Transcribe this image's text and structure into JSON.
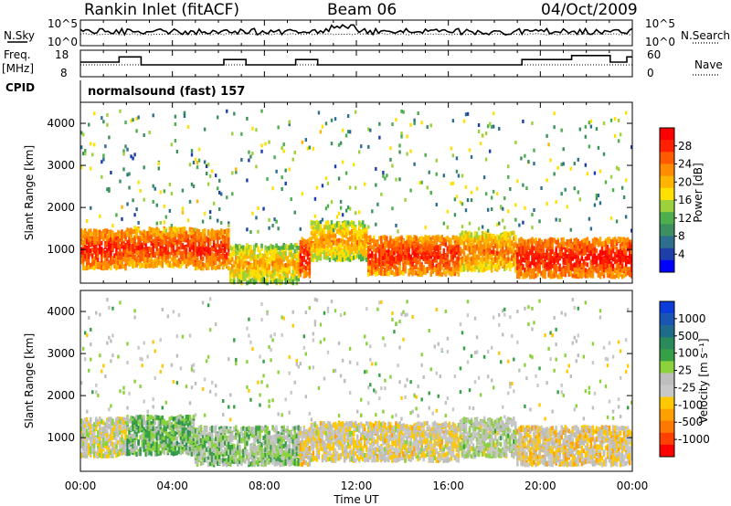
{
  "header": {
    "station": "Rankin Inlet (fitACF)",
    "beam": "Beam 06",
    "date": "04/Oct/2009"
  },
  "top_panels": {
    "nsky_label": "N.Sky",
    "nsky_ticks": [
      "10^5",
      "10^0"
    ],
    "nsearch_label": "N.Search",
    "nsearch_ticks": [
      "10^5",
      "10^0"
    ],
    "freq_label_line1": "Freq.",
    "freq_label_line2": "[MHz]",
    "freq_ticks": [
      "18",
      "8"
    ],
    "nave_label": "Nave",
    "nave_ticks": [
      "60",
      "0"
    ],
    "cpid_label": "CPID",
    "cpid_value": "normalsound (fast) 157"
  },
  "colors": {
    "power_scale": [
      "#0000ff",
      "#1c3faa",
      "#2e6e8e",
      "#3c8f5f",
      "#4cae4c",
      "#9dd13c",
      "#ffe000",
      "#ffb400",
      "#ff8c00",
      "#ff5a00",
      "#ff2000",
      "#ff0000"
    ],
    "velocity_scale": [
      "#0c3cdc",
      "#1a55b4",
      "#1f6b8c",
      "#2a8a5a",
      "#36a046",
      "#8cd23c",
      "#bebebe",
      "#c8c8c8",
      "#ffc800",
      "#ffa000",
      "#ff7800",
      "#ff4000",
      "#ff0000"
    ],
    "ground_scatter": "#bebebe"
  },
  "chart_data": [
    {
      "type": "heatmap",
      "title": "Power",
      "xlabel": "",
      "ylabel": "Slant Range [km]",
      "x_range_hours": [
        0,
        24
      ],
      "ylim": [
        200,
        4500
      ],
      "y_ticks": [
        "1000",
        "2000",
        "3000",
        "4000"
      ],
      "colorbar": {
        "label": "Power [dB]",
        "ticks": [
          "4",
          "8",
          "12",
          "16",
          "20",
          "24",
          "28"
        ],
        "range": [
          0,
          30
        ]
      },
      "dominant_bands": [
        {
          "start_h": 0.0,
          "end_h": 2.0,
          "center_km": 1000,
          "power_db": 27
        },
        {
          "start_h": 2.0,
          "end_h": 5.0,
          "center_km": 1050,
          "power_db": 26
        },
        {
          "start_h": 5.0,
          "end_h": 6.5,
          "center_km": 1000,
          "power_db": 27
        },
        {
          "start_h": 6.5,
          "end_h": 9.5,
          "center_km": 650,
          "power_db": 20
        },
        {
          "start_h": 10.0,
          "end_h": 12.5,
          "center_km": 1200,
          "power_db": 21
        },
        {
          "start_h": 12.5,
          "end_h": 16.5,
          "center_km": 850,
          "power_db": 27
        },
        {
          "start_h": 16.5,
          "end_h": 19.0,
          "center_km": 950,
          "power_db": 23
        },
        {
          "start_h": 19.0,
          "end_h": 24.0,
          "center_km": 800,
          "power_db": 28
        }
      ]
    },
    {
      "type": "heatmap",
      "title": "Velocity",
      "xlabel": "Time UT",
      "ylabel": "Slant Range [km]",
      "x_range_hours": [
        0,
        24
      ],
      "x_ticks": [
        "00:00",
        "04:00",
        "08:00",
        "12:00",
        "16:00",
        "20:00",
        "00:00"
      ],
      "ylim": [
        200,
        4500
      ],
      "y_ticks": [
        "1000",
        "2000",
        "3000",
        "4000"
      ],
      "colorbar": {
        "label": "Velocity [m s⁻¹]",
        "ticks": [
          "1000",
          "500",
          "100",
          "25",
          "-25",
          "-100",
          "-500",
          "-1000"
        ],
        "range": [
          -1000,
          1000
        ]
      },
      "dominant_bands": [
        {
          "start_h": 0.0,
          "end_h": 2.0,
          "center_km": 1000,
          "velocity": -100
        },
        {
          "start_h": 2.0,
          "end_h": 5.0,
          "center_km": 1050,
          "velocity": 200
        },
        {
          "start_h": 5.0,
          "end_h": 9.5,
          "center_km": 800,
          "velocity": 100
        },
        {
          "start_h": 10.0,
          "end_h": 16.5,
          "center_km": 900,
          "velocity": -150
        },
        {
          "start_h": 16.5,
          "end_h": 19.0,
          "center_km": 1000,
          "velocity": 0
        },
        {
          "start_h": 19.0,
          "end_h": 24.0,
          "center_km": 800,
          "velocity": -200
        }
      ]
    }
  ]
}
